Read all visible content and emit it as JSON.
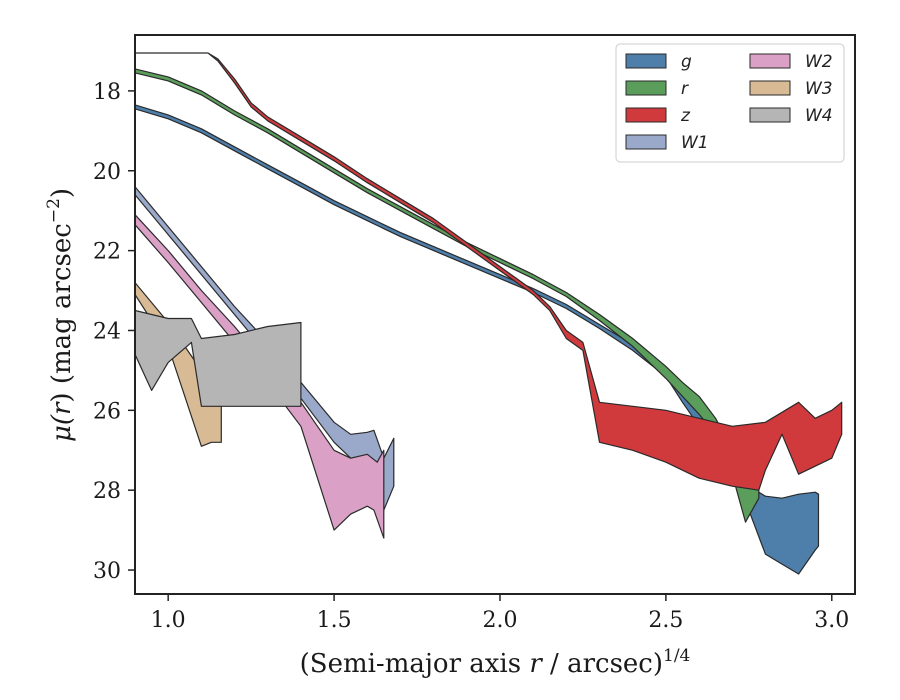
{
  "chart_data": {
    "type": "area",
    "xlabel_prefix": "(Semi-major axis ",
    "xlabel_var": "r",
    "xlabel_mid": " / arcsec)",
    "xlabel_sup": "1/4",
    "ylabel_prefix": "μ(",
    "ylabel_var": "r",
    "ylabel_mid": ") (mag arcsec",
    "ylabel_sup": "−2",
    "ylabel_suffix": ")",
    "xlim": [
      0.9,
      3.07
    ],
    "ylim": [
      30.6,
      16.6
    ],
    "y_inverted": true,
    "xticks": [
      "1.0",
      "1.5",
      "2.0",
      "2.5",
      "3.0"
    ],
    "yticks": [
      "18",
      "20",
      "22",
      "24",
      "26",
      "28",
      "30"
    ],
    "legend_position": "top-right",
    "legend_columns": 2,
    "series": [
      {
        "name": "g",
        "color": "#4e7fab",
        "upper": [
          [
            0.9,
            18.35
          ],
          [
            1.0,
            18.6
          ],
          [
            1.1,
            18.95
          ],
          [
            1.2,
            19.4
          ],
          [
            1.3,
            19.85
          ],
          [
            1.4,
            20.3
          ],
          [
            1.5,
            20.75
          ],
          [
            1.6,
            21.15
          ],
          [
            1.7,
            21.55
          ],
          [
            1.8,
            21.9
          ],
          [
            1.9,
            22.25
          ],
          [
            2.0,
            22.6
          ],
          [
            2.1,
            22.95
          ],
          [
            2.2,
            23.35
          ],
          [
            2.3,
            23.85
          ],
          [
            2.4,
            24.35
          ],
          [
            2.5,
            24.95
          ],
          [
            2.55,
            25.5
          ],
          [
            2.6,
            26.0
          ],
          [
            2.65,
            26.5
          ],
          [
            2.7,
            27.1
          ],
          [
            2.75,
            27.9
          ],
          [
            2.8,
            28.15
          ],
          [
            2.85,
            28.2
          ],
          [
            2.9,
            28.1
          ],
          [
            2.95,
            28.05
          ],
          [
            2.96,
            28.1
          ]
        ],
        "lower": [
          [
            0.9,
            18.45
          ],
          [
            1.0,
            18.7
          ],
          [
            1.1,
            19.05
          ],
          [
            1.2,
            19.5
          ],
          [
            1.3,
            19.95
          ],
          [
            1.4,
            20.4
          ],
          [
            1.5,
            20.85
          ],
          [
            1.6,
            21.25
          ],
          [
            1.7,
            21.65
          ],
          [
            1.8,
            22.0
          ],
          [
            1.9,
            22.35
          ],
          [
            2.0,
            22.7
          ],
          [
            2.1,
            23.05
          ],
          [
            2.2,
            23.45
          ],
          [
            2.3,
            23.95
          ],
          [
            2.4,
            24.5
          ],
          [
            2.5,
            25.15
          ],
          [
            2.55,
            25.8
          ],
          [
            2.6,
            26.4
          ],
          [
            2.65,
            26.9
          ],
          [
            2.7,
            27.5
          ],
          [
            2.75,
            28.5
          ],
          [
            2.8,
            29.6
          ],
          [
            2.85,
            29.85
          ],
          [
            2.9,
            30.1
          ],
          [
            2.95,
            29.5
          ],
          [
            2.96,
            29.4
          ]
        ]
      },
      {
        "name": "r",
        "color": "#5b9e5c",
        "upper": [
          [
            0.9,
            17.45
          ],
          [
            1.0,
            17.65
          ],
          [
            1.1,
            18.0
          ],
          [
            1.2,
            18.5
          ],
          [
            1.3,
            18.95
          ],
          [
            1.4,
            19.45
          ],
          [
            1.5,
            19.95
          ],
          [
            1.6,
            20.45
          ],
          [
            1.7,
            20.9
          ],
          [
            1.8,
            21.35
          ],
          [
            1.9,
            21.8
          ],
          [
            2.0,
            22.2
          ],
          [
            2.1,
            22.6
          ],
          [
            2.2,
            23.05
          ],
          [
            2.3,
            23.6
          ],
          [
            2.4,
            24.2
          ],
          [
            2.5,
            24.9
          ],
          [
            2.55,
            25.3
          ],
          [
            2.6,
            25.65
          ],
          [
            2.65,
            26.2
          ],
          [
            2.7,
            27.0
          ],
          [
            2.75,
            27.8
          ],
          [
            2.78,
            27.9
          ]
        ],
        "lower": [
          [
            0.9,
            17.55
          ],
          [
            1.0,
            17.75
          ],
          [
            1.1,
            18.1
          ],
          [
            1.2,
            18.6
          ],
          [
            1.3,
            19.05
          ],
          [
            1.4,
            19.55
          ],
          [
            1.5,
            20.05
          ],
          [
            1.6,
            20.55
          ],
          [
            1.7,
            21.0
          ],
          [
            1.8,
            21.45
          ],
          [
            1.9,
            21.9
          ],
          [
            2.0,
            22.3
          ],
          [
            2.1,
            22.7
          ],
          [
            2.2,
            23.15
          ],
          [
            2.3,
            23.75
          ],
          [
            2.4,
            24.4
          ],
          [
            2.5,
            25.2
          ],
          [
            2.55,
            25.65
          ],
          [
            2.6,
            26.1
          ],
          [
            2.65,
            26.6
          ],
          [
            2.7,
            27.6
          ],
          [
            2.74,
            28.8
          ],
          [
            2.78,
            28.2
          ]
        ]
      },
      {
        "name": "z",
        "color": "#d03a3d",
        "upper": [
          [
            0.9,
            17.05
          ],
          [
            1.12,
            17.05
          ],
          [
            1.15,
            17.2
          ],
          [
            1.2,
            17.7
          ],
          [
            1.25,
            18.3
          ],
          [
            1.3,
            18.65
          ],
          [
            1.4,
            19.15
          ],
          [
            1.5,
            19.65
          ],
          [
            1.6,
            20.2
          ],
          [
            1.7,
            20.7
          ],
          [
            1.8,
            21.2
          ],
          [
            1.9,
            21.8
          ],
          [
            2.0,
            22.4
          ],
          [
            2.1,
            23.0
          ],
          [
            2.15,
            23.4
          ],
          [
            2.2,
            24.0
          ],
          [
            2.25,
            24.3
          ],
          [
            2.3,
            25.8
          ],
          [
            2.4,
            25.9
          ],
          [
            2.5,
            26.0
          ],
          [
            2.6,
            26.2
          ],
          [
            2.7,
            26.4
          ],
          [
            2.8,
            26.3
          ],
          [
            2.9,
            25.8
          ],
          [
            2.95,
            26.2
          ],
          [
            3.0,
            26.0
          ],
          [
            3.03,
            25.8
          ]
        ],
        "lower": [
          [
            0.9,
            17.05
          ],
          [
            1.12,
            17.05
          ],
          [
            1.15,
            17.25
          ],
          [
            1.2,
            17.8
          ],
          [
            1.25,
            18.4
          ],
          [
            1.3,
            18.75
          ],
          [
            1.4,
            19.25
          ],
          [
            1.5,
            19.75
          ],
          [
            1.6,
            20.3
          ],
          [
            1.7,
            20.8
          ],
          [
            1.8,
            21.3
          ],
          [
            1.9,
            21.9
          ],
          [
            2.0,
            22.5
          ],
          [
            2.1,
            23.1
          ],
          [
            2.15,
            23.5
          ],
          [
            2.2,
            24.2
          ],
          [
            2.25,
            24.5
          ],
          [
            2.3,
            26.8
          ],
          [
            2.4,
            27.0
          ],
          [
            2.5,
            27.3
          ],
          [
            2.6,
            27.7
          ],
          [
            2.7,
            27.9
          ],
          [
            2.78,
            28.0
          ],
          [
            2.8,
            27.5
          ],
          [
            2.85,
            26.6
          ],
          [
            2.9,
            27.6
          ],
          [
            3.0,
            27.2
          ],
          [
            3.03,
            26.6
          ]
        ]
      },
      {
        "name": "W1",
        "color": "#9aa8c9",
        "upper": [
          [
            0.9,
            20.4
          ],
          [
            1.0,
            21.4
          ],
          [
            1.1,
            22.4
          ],
          [
            1.2,
            23.4
          ],
          [
            1.3,
            24.3
          ],
          [
            1.4,
            25.3
          ],
          [
            1.5,
            26.3
          ],
          [
            1.55,
            26.6
          ],
          [
            1.6,
            26.55
          ],
          [
            1.62,
            26.5
          ],
          [
            1.65,
            27.2
          ],
          [
            1.68,
            26.7
          ]
        ],
        "lower": [
          [
            0.9,
            20.6
          ],
          [
            1.0,
            21.6
          ],
          [
            1.1,
            22.6
          ],
          [
            1.2,
            23.6
          ],
          [
            1.3,
            24.6
          ],
          [
            1.4,
            25.7
          ],
          [
            1.5,
            26.8
          ],
          [
            1.55,
            27.2
          ],
          [
            1.6,
            27.15
          ],
          [
            1.62,
            27.3
          ],
          [
            1.65,
            28.5
          ],
          [
            1.68,
            27.9
          ]
        ]
      },
      {
        "name": "W2",
        "color": "#dba0c6",
        "upper": [
          [
            0.9,
            21.1
          ],
          [
            1.0,
            22.0
          ],
          [
            1.1,
            23.0
          ],
          [
            1.2,
            23.9
          ],
          [
            1.3,
            24.9
          ],
          [
            1.4,
            25.8
          ],
          [
            1.5,
            27.0
          ],
          [
            1.55,
            27.2
          ],
          [
            1.6,
            27.1
          ],
          [
            1.63,
            27.3
          ],
          [
            1.65,
            27.0
          ]
        ],
        "lower": [
          [
            0.9,
            21.35
          ],
          [
            1.0,
            22.3
          ],
          [
            1.1,
            23.3
          ],
          [
            1.2,
            24.3
          ],
          [
            1.3,
            25.3
          ],
          [
            1.4,
            26.4
          ],
          [
            1.5,
            29.0
          ],
          [
            1.55,
            28.6
          ],
          [
            1.6,
            28.4
          ],
          [
            1.62,
            28.5
          ],
          [
            1.65,
            29.2
          ]
        ]
      },
      {
        "name": "W3",
        "color": "#d8bb94",
        "upper": [
          [
            0.9,
            22.8
          ],
          [
            1.0,
            23.8
          ],
          [
            1.1,
            25.0
          ],
          [
            1.13,
            25.5
          ],
          [
            1.16,
            25.2
          ]
        ],
        "lower": [
          [
            0.9,
            23.1
          ],
          [
            1.0,
            24.4
          ],
          [
            1.1,
            26.9
          ],
          [
            1.13,
            26.8
          ],
          [
            1.16,
            26.8
          ]
        ]
      },
      {
        "name": "W4",
        "color": "#b5b5b5",
        "upper": [
          [
            0.9,
            23.5
          ],
          [
            1.0,
            23.7
          ],
          [
            1.07,
            23.7
          ],
          [
            1.1,
            24.2
          ],
          [
            1.2,
            24.1
          ],
          [
            1.3,
            23.9
          ],
          [
            1.4,
            23.8
          ]
        ],
        "lower": [
          [
            0.9,
            24.6
          ],
          [
            0.95,
            25.5
          ],
          [
            1.0,
            24.8
          ],
          [
            1.07,
            24.3
          ],
          [
            1.1,
            25.9
          ],
          [
            1.2,
            25.9
          ],
          [
            1.3,
            25.9
          ],
          [
            1.4,
            25.9
          ]
        ]
      }
    ]
  }
}
